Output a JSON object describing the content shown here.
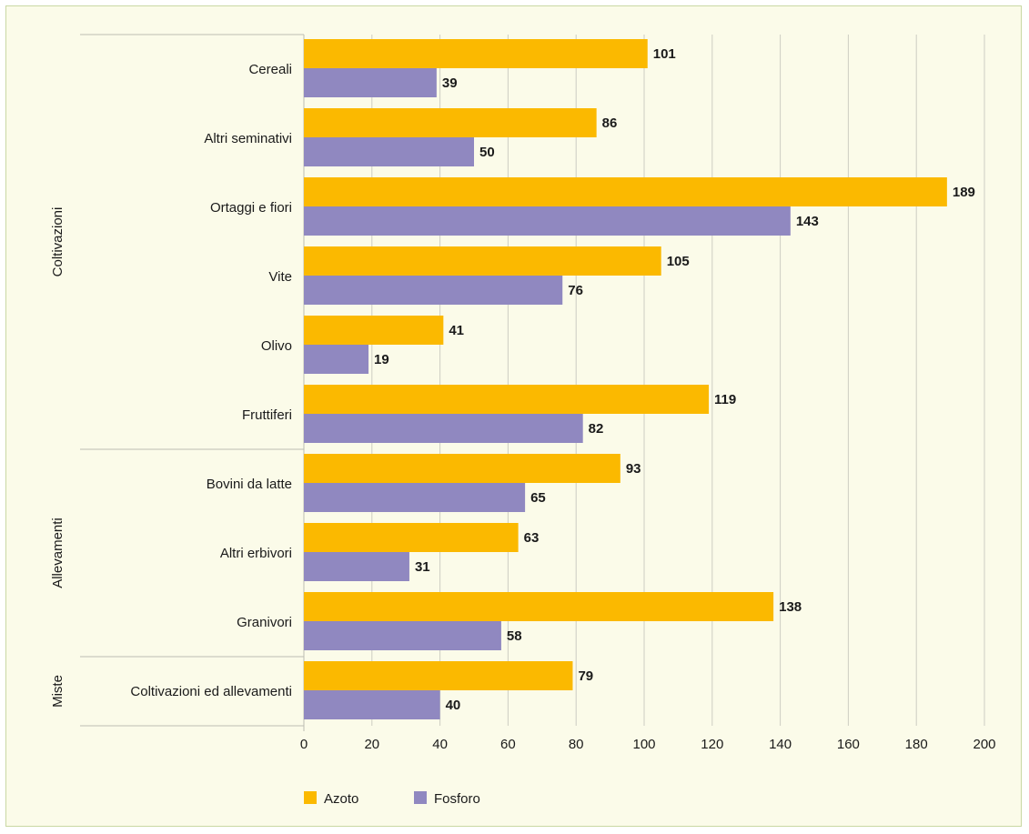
{
  "chart_data": {
    "type": "bar",
    "orientation": "horizontal",
    "title": "",
    "xlabel": "",
    "ylabel": "",
    "xlim": [
      0,
      200
    ],
    "x_ticks": [
      0,
      20,
      40,
      60,
      80,
      100,
      120,
      140,
      160,
      180,
      200
    ],
    "grid": "vertical",
    "legend_position": "bottom-left",
    "groups": [
      {
        "label": "Coltivazioni",
        "categories": [
          "Cereali",
          "Altri seminativi",
          "Ortaggi e fiori",
          "Vite",
          "Olivo",
          "Fruttiferi"
        ]
      },
      {
        "label": "Allevamenti",
        "categories": [
          "Bovini da latte",
          "Altri erbivori",
          "Granivori"
        ]
      },
      {
        "label": "Miste",
        "categories": [
          "Coltivazioni ed allevamenti"
        ]
      }
    ],
    "categories": [
      "Cereali",
      "Altri seminativi",
      "Ortaggi e fiori",
      "Vite",
      "Olivo",
      "Fruttiferi",
      "Bovini da latte",
      "Altri erbivori",
      "Granivori",
      "Coltivazioni ed allevamenti"
    ],
    "series": [
      {
        "name": "Azoto",
        "color": "#fbb900",
        "values": [
          101,
          86,
          189,
          105,
          41,
          119,
          93,
          63,
          138,
          79
        ]
      },
      {
        "name": "Fosforo",
        "color": "#9088c0",
        "values": [
          39,
          50,
          143,
          76,
          19,
          82,
          65,
          31,
          58,
          40
        ]
      }
    ]
  }
}
